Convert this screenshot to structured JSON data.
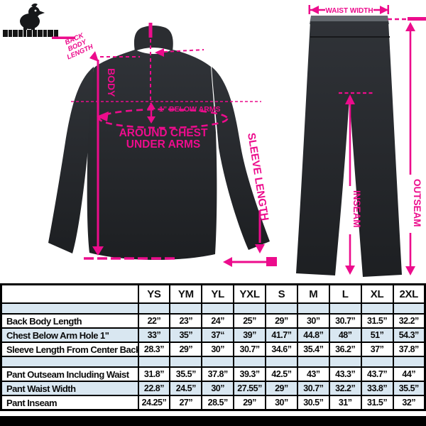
{
  "brand": {
    "mascot_icon": "mascot-icon",
    "ink_color": "#141414",
    "accent_color": "#ec0c8c"
  },
  "diagram": {
    "accent_color": "#ec0c8c",
    "garment_color": "#25272b",
    "jacket": {
      "back_label_line1": "BACK",
      "back_label_line2": "BODY",
      "back_label_line3": "LENGTH",
      "body_label": "BODY",
      "below_arms_label": "1” BELOW ARMS",
      "around_chest_line1": "AROUND CHEST",
      "around_chest_line2": "UNDER ARMS",
      "sleeve_label": "SLEEVE LENGTH"
    },
    "pants": {
      "waist_label": "WAIST WIDTH",
      "outseam_label": "OUTSEAM",
      "inseam_label": "INSEAM"
    }
  },
  "chart_data": {
    "type": "table",
    "columns": [
      "YS",
      "YM",
      "YL",
      "YXL",
      "S",
      "M",
      "L",
      "XL",
      "2XL"
    ],
    "rows": [
      {
        "label": "Back Body Length",
        "values": [
          "22”",
          "23”",
          "24”",
          "25”",
          "29”",
          "30”",
          "30.7”",
          "31.5”",
          "32.2”"
        ]
      },
      {
        "label": "Chest Below Arm Hole 1\"",
        "values": [
          "33”",
          "35”",
          "37“",
          "39”",
          "41.7”",
          "44.8”",
          "48”",
          "51”",
          "54.3”"
        ]
      },
      {
        "label": "Sleeve Length From Center Back",
        "values": [
          "28.3”",
          "29”",
          "30”",
          "30.7”",
          "34.6”",
          "35.4”",
          "36.2”",
          "37”",
          "37.8”"
        ]
      },
      {
        "label": "Pant Outseam Including Waist",
        "values": [
          "31.8”",
          "35.5”",
          "37.8”",
          "39.3”",
          "42.5”",
          "43”",
          "43.3”",
          "43.7”",
          "44”"
        ]
      },
      {
        "label": "Pant Waist Width",
        "values": [
          "22.8”",
          "24.5”",
          "30”",
          "27.55”",
          "29”",
          "30.7”",
          "32.2”",
          "33.8”",
          "35.5”"
        ]
      },
      {
        "label": "Pant Inseam",
        "values": [
          "24.25”",
          "27”",
          "28.5”",
          "29”",
          "30”",
          "30.5”",
          "31”",
          "31.5”",
          "32”"
        ]
      }
    ],
    "row_alt_fill": "#d9e7f1"
  }
}
